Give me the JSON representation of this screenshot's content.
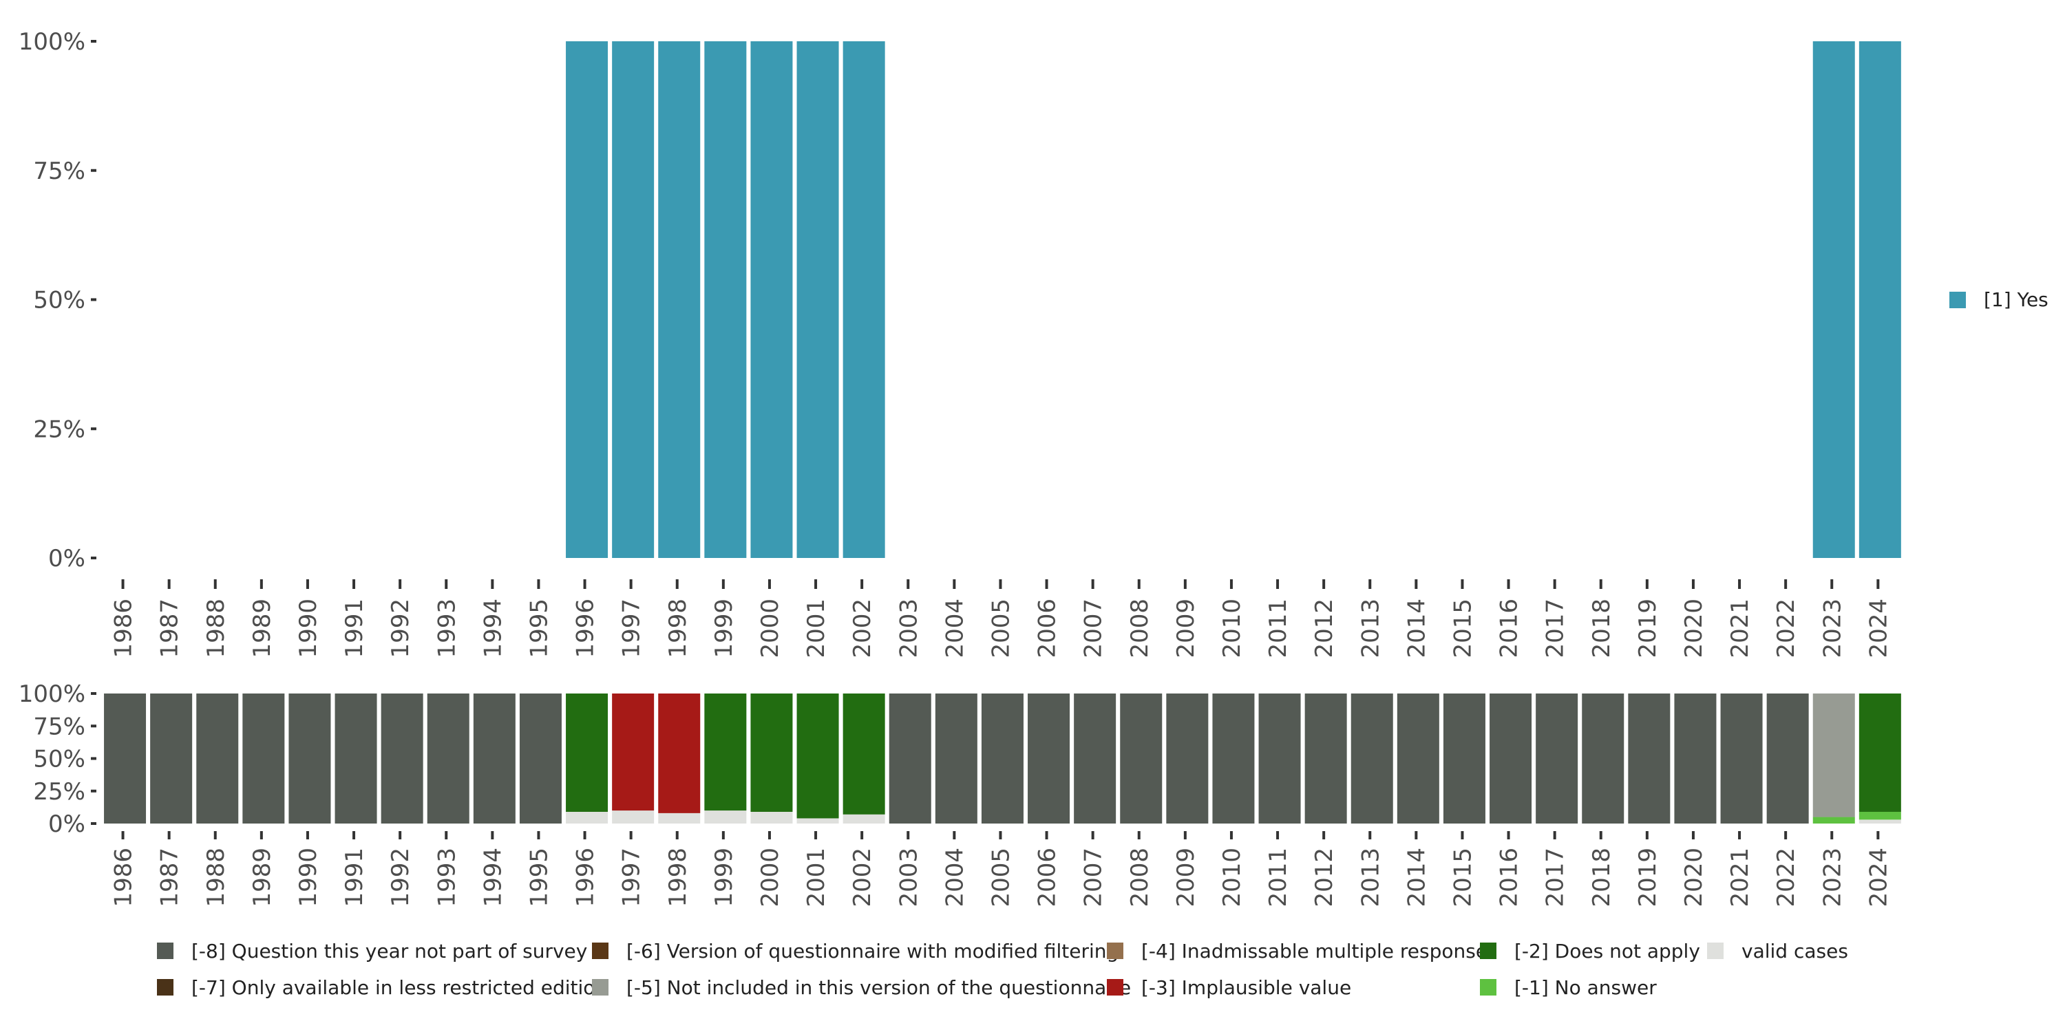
{
  "chart_data": [
    {
      "type": "bar",
      "stacked": true,
      "title": "",
      "xlabel": "",
      "ylabel": "",
      "ylim": [
        0,
        100
      ],
      "yticks": [
        "0%",
        "25%",
        "50%",
        "75%",
        "100%"
      ],
      "categories": [
        "1986",
        "1987",
        "1988",
        "1989",
        "1990",
        "1991",
        "1992",
        "1993",
        "1994",
        "1995",
        "1996",
        "1997",
        "1998",
        "1999",
        "2000",
        "2001",
        "2002",
        "2003",
        "2004",
        "2005",
        "2006",
        "2007",
        "2008",
        "2009",
        "2010",
        "2011",
        "2012",
        "2013",
        "2014",
        "2015",
        "2016",
        "2017",
        "2018",
        "2019",
        "2020",
        "2021",
        "2022",
        "2023",
        "2024"
      ],
      "series": [
        {
          "name": "[1] Yes",
          "color": "#3b9ab2",
          "values": [
            null,
            null,
            null,
            null,
            null,
            null,
            null,
            null,
            null,
            null,
            100,
            100,
            100,
            100,
            100,
            100,
            100,
            null,
            null,
            null,
            null,
            null,
            null,
            null,
            null,
            null,
            null,
            null,
            null,
            null,
            null,
            null,
            null,
            null,
            null,
            null,
            null,
            100,
            100
          ]
        }
      ],
      "legend": {
        "position": "right",
        "items": [
          {
            "label": "[1] Yes",
            "color": "#3b9ab2"
          }
        ]
      }
    },
    {
      "type": "bar",
      "stacked": true,
      "title": "",
      "xlabel": "",
      "ylabel": "",
      "ylim": [
        0,
        100
      ],
      "yticks": [
        "0%",
        "25%",
        "50%",
        "75%",
        "100%"
      ],
      "categories": [
        "1986",
        "1987",
        "1988",
        "1989",
        "1990",
        "1991",
        "1992",
        "1993",
        "1994",
        "1995",
        "1996",
        "1997",
        "1998",
        "1999",
        "2000",
        "2001",
        "2002",
        "2003",
        "2004",
        "2005",
        "2006",
        "2007",
        "2008",
        "2009",
        "2010",
        "2011",
        "2012",
        "2013",
        "2014",
        "2015",
        "2016",
        "2017",
        "2018",
        "2019",
        "2020",
        "2021",
        "2022",
        "2023",
        "2024"
      ],
      "series": [
        {
          "name": "valid cases",
          "color": "#dfe0dd",
          "values": [
            0,
            0,
            0,
            0,
            0,
            0,
            0,
            0,
            0,
            0,
            9,
            10,
            8,
            10,
            9,
            4,
            7,
            0,
            0,
            0,
            0,
            0,
            0,
            0,
            0,
            0,
            0,
            0,
            0,
            0,
            0,
            0,
            0,
            0,
            0,
            0,
            0,
            0,
            3
          ]
        },
        {
          "name": "[-1] No answer",
          "color": "#5ec140",
          "values": [
            0,
            0,
            0,
            0,
            0,
            0,
            0,
            0,
            0,
            0,
            0,
            0,
            0,
            0,
            0,
            0,
            0,
            0,
            0,
            0,
            0,
            0,
            0,
            0,
            0,
            0,
            0,
            0,
            0,
            0,
            0,
            0,
            0,
            0,
            0,
            0,
            0,
            5,
            6
          ]
        },
        {
          "name": "[-2] Does not apply",
          "color": "#226d11",
          "values": [
            0,
            0,
            0,
            0,
            0,
            0,
            0,
            0,
            0,
            0,
            91,
            0,
            0,
            90,
            91,
            96,
            93,
            0,
            0,
            0,
            0,
            0,
            0,
            0,
            0,
            0,
            0,
            0,
            0,
            0,
            0,
            0,
            0,
            0,
            0,
            0,
            0,
            0,
            91
          ]
        },
        {
          "name": "[-3] Implausible value",
          "color": "#a61a17",
          "values": [
            0,
            0,
            0,
            0,
            0,
            0,
            0,
            0,
            0,
            0,
            0,
            90,
            92,
            0,
            0,
            0,
            0,
            0,
            0,
            0,
            0,
            0,
            0,
            0,
            0,
            0,
            0,
            0,
            0,
            0,
            0,
            0,
            0,
            0,
            0,
            0,
            0,
            0,
            0
          ]
        },
        {
          "name": "[-5] Not included in this version of the questionnaire",
          "color": "#979b93",
          "values": [
            0,
            0,
            0,
            0,
            0,
            0,
            0,
            0,
            0,
            0,
            0,
            0,
            0,
            0,
            0,
            0,
            0,
            0,
            0,
            0,
            0,
            0,
            0,
            0,
            0,
            0,
            0,
            0,
            0,
            0,
            0,
            0,
            0,
            0,
            0,
            0,
            0,
            95,
            0
          ]
        },
        {
          "name": "[-8] Question this year not part of survey",
          "color": "#545a54",
          "values": [
            100,
            100,
            100,
            100,
            100,
            100,
            100,
            100,
            100,
            100,
            0,
            0,
            0,
            0,
            0,
            0,
            0,
            100,
            100,
            100,
            100,
            100,
            100,
            100,
            100,
            100,
            100,
            100,
            100,
            100,
            100,
            100,
            100,
            100,
            100,
            100,
            100,
            0,
            0
          ]
        }
      ],
      "legend": {
        "position": "bottom",
        "items": [
          {
            "label": "[-8] Question this year not part of survey",
            "color": "#545a54"
          },
          {
            "label": "[-7] Only available in less restricted edition",
            "color": "#4a3218"
          },
          {
            "label": "[-6] Version of questionnaire with modified filtering",
            "color": "#5a3716"
          },
          {
            "label": "[-5] Not included in this version of the questionnaire",
            "color": "#979b93"
          },
          {
            "label": "[-4] Inadmissable multiple response",
            "color": "#94704d"
          },
          {
            "label": "[-3] Implausible value",
            "color": "#a61a17"
          },
          {
            "label": "[-2] Does not apply",
            "color": "#226d11"
          },
          {
            "label": "[-1] No answer",
            "color": "#5ec140"
          },
          {
            "label": "valid cases",
            "color": "#dfe0dd"
          }
        ]
      }
    }
  ]
}
